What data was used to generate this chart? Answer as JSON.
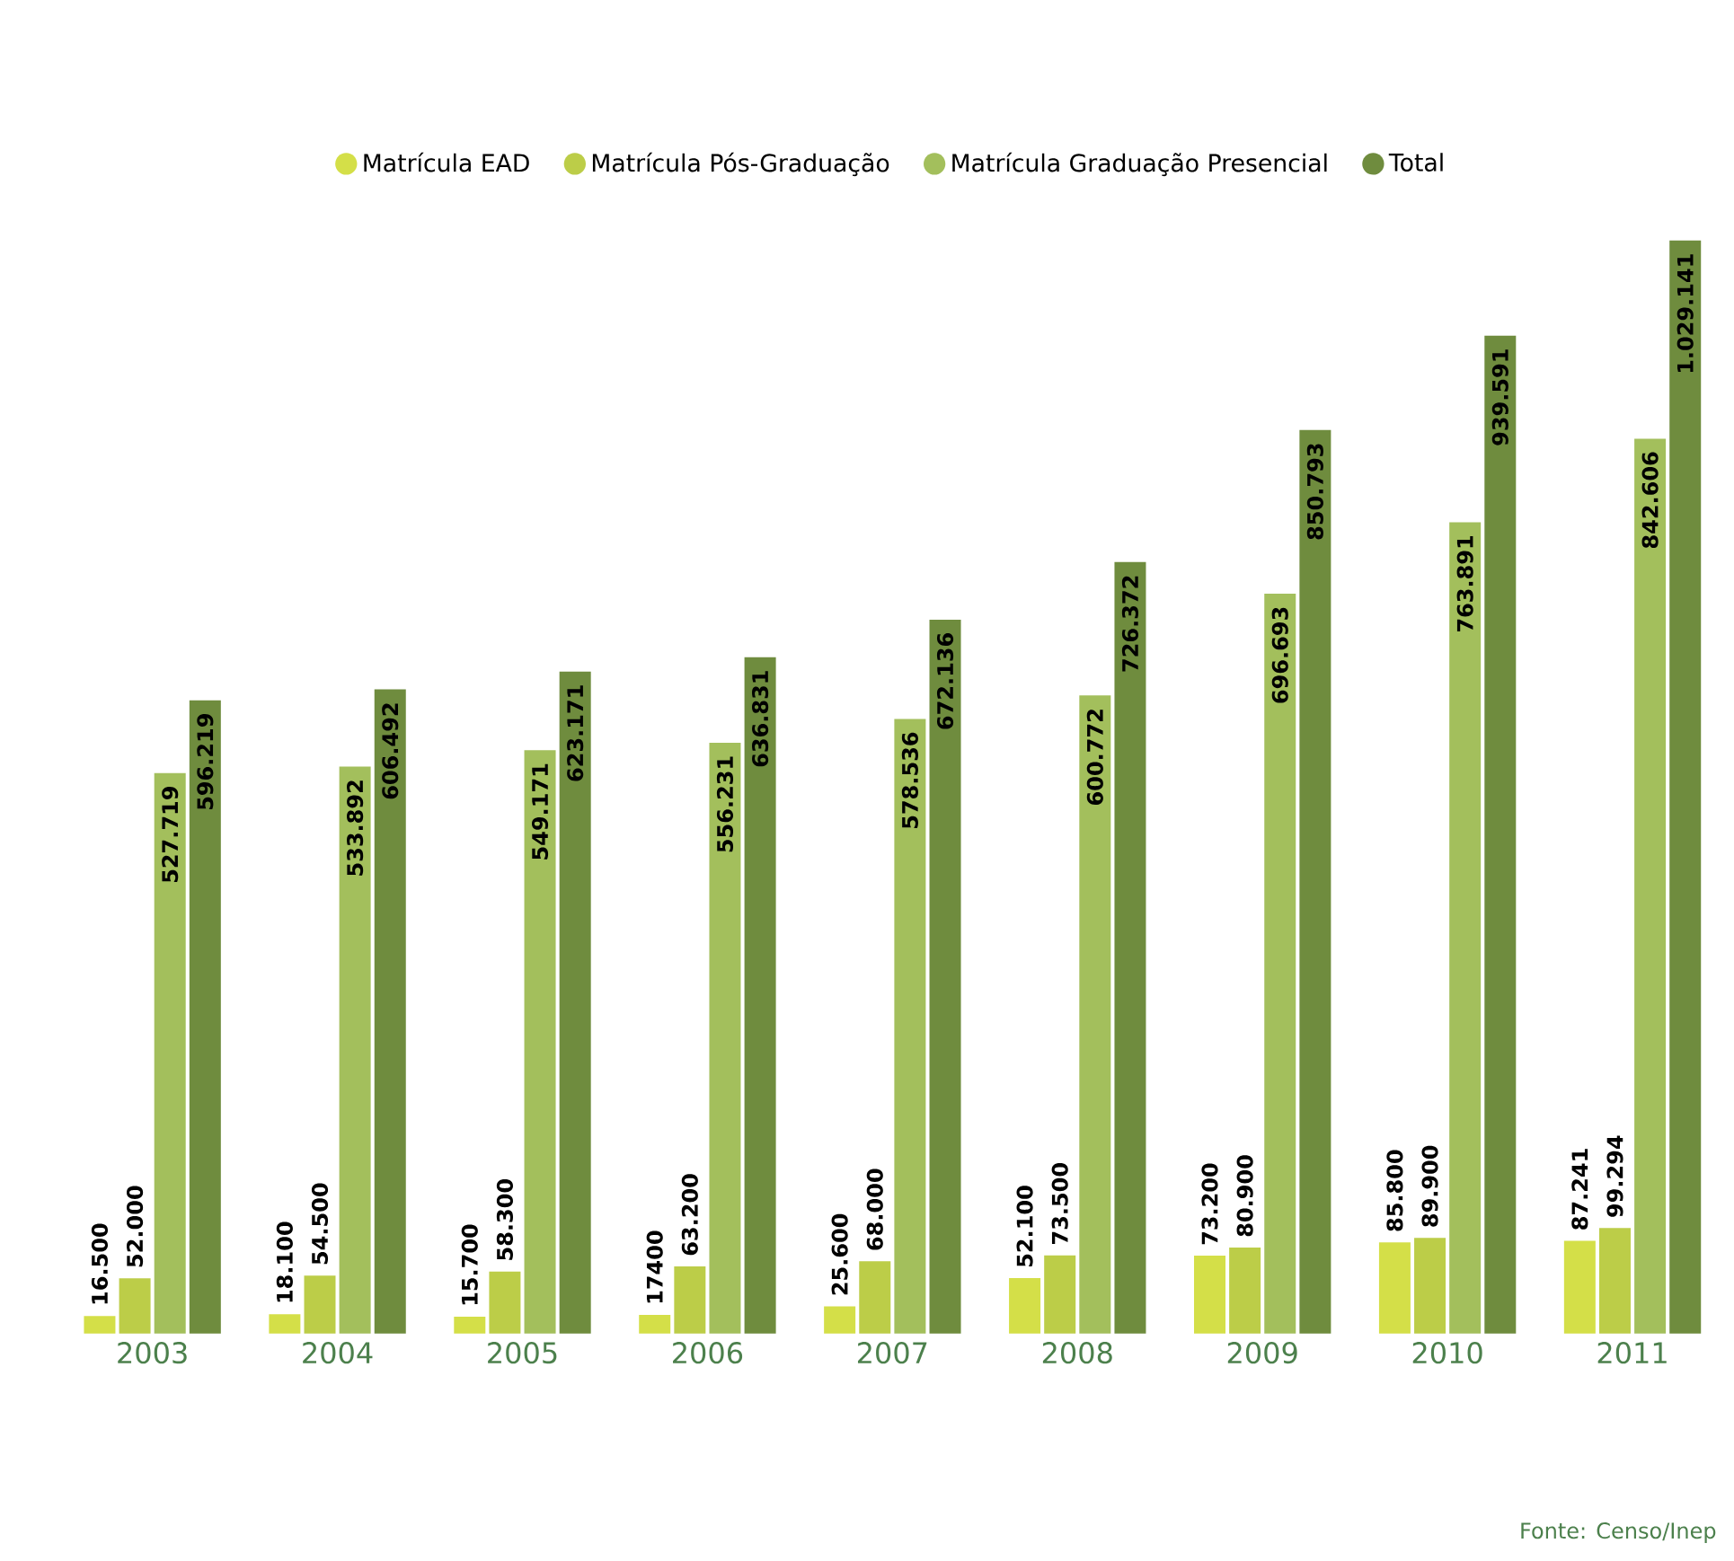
{
  "chart_data": {
    "type": "bar",
    "categories": [
      "2003",
      "2004",
      "2005",
      "2006",
      "2007",
      "2008",
      "2009",
      "2010",
      "2011"
    ],
    "series": [
      {
        "name": "Matrícula EAD",
        "color": "#d4df48",
        "values": [
          16500,
          18100,
          15700,
          17400,
          25600,
          52100,
          73200,
          85800,
          87241
        ],
        "value_labels": [
          "16.500",
          "18.100",
          "15.700",
          "17400",
          "25.600",
          "52.100",
          "73.200",
          "85.800",
          "87.241"
        ]
      },
      {
        "name": "Matrícula Pós-Graduação",
        "color": "#bccd48",
        "values": [
          52000,
          54500,
          58300,
          63200,
          68000,
          73500,
          80900,
          89900,
          99294
        ],
        "value_labels": [
          "52.000",
          "54.500",
          "58.300",
          "63.200",
          "68.000",
          "73.500",
          "80.900",
          "89.900",
          "99.294"
        ]
      },
      {
        "name": "Matrícula Graduação Presencial",
        "color": "#a3bf5c",
        "values": [
          527719,
          533892,
          549171,
          556231,
          578536,
          600772,
          696693,
          763891,
          842606
        ],
        "value_labels": [
          "527.719",
          "533.892",
          "549.171",
          "556.231",
          "578.536",
          "600.772",
          "696.693",
          "763.891",
          "842.606"
        ]
      },
      {
        "name": "Total",
        "color": "#6f8c3e",
        "values": [
          596219,
          606492,
          623171,
          636831,
          672136,
          726372,
          850793,
          939591,
          1029141
        ],
        "value_labels": [
          "596.219",
          "606.492",
          "623.171",
          "636.831",
          "672.136",
          "726.372",
          "850.793",
          "939.591",
          "1.029.141"
        ]
      }
    ],
    "tick_labels": "x",
    "legend": "top",
    "annotations": [
      "Fonte: Censo/Inep"
    ]
  }
}
